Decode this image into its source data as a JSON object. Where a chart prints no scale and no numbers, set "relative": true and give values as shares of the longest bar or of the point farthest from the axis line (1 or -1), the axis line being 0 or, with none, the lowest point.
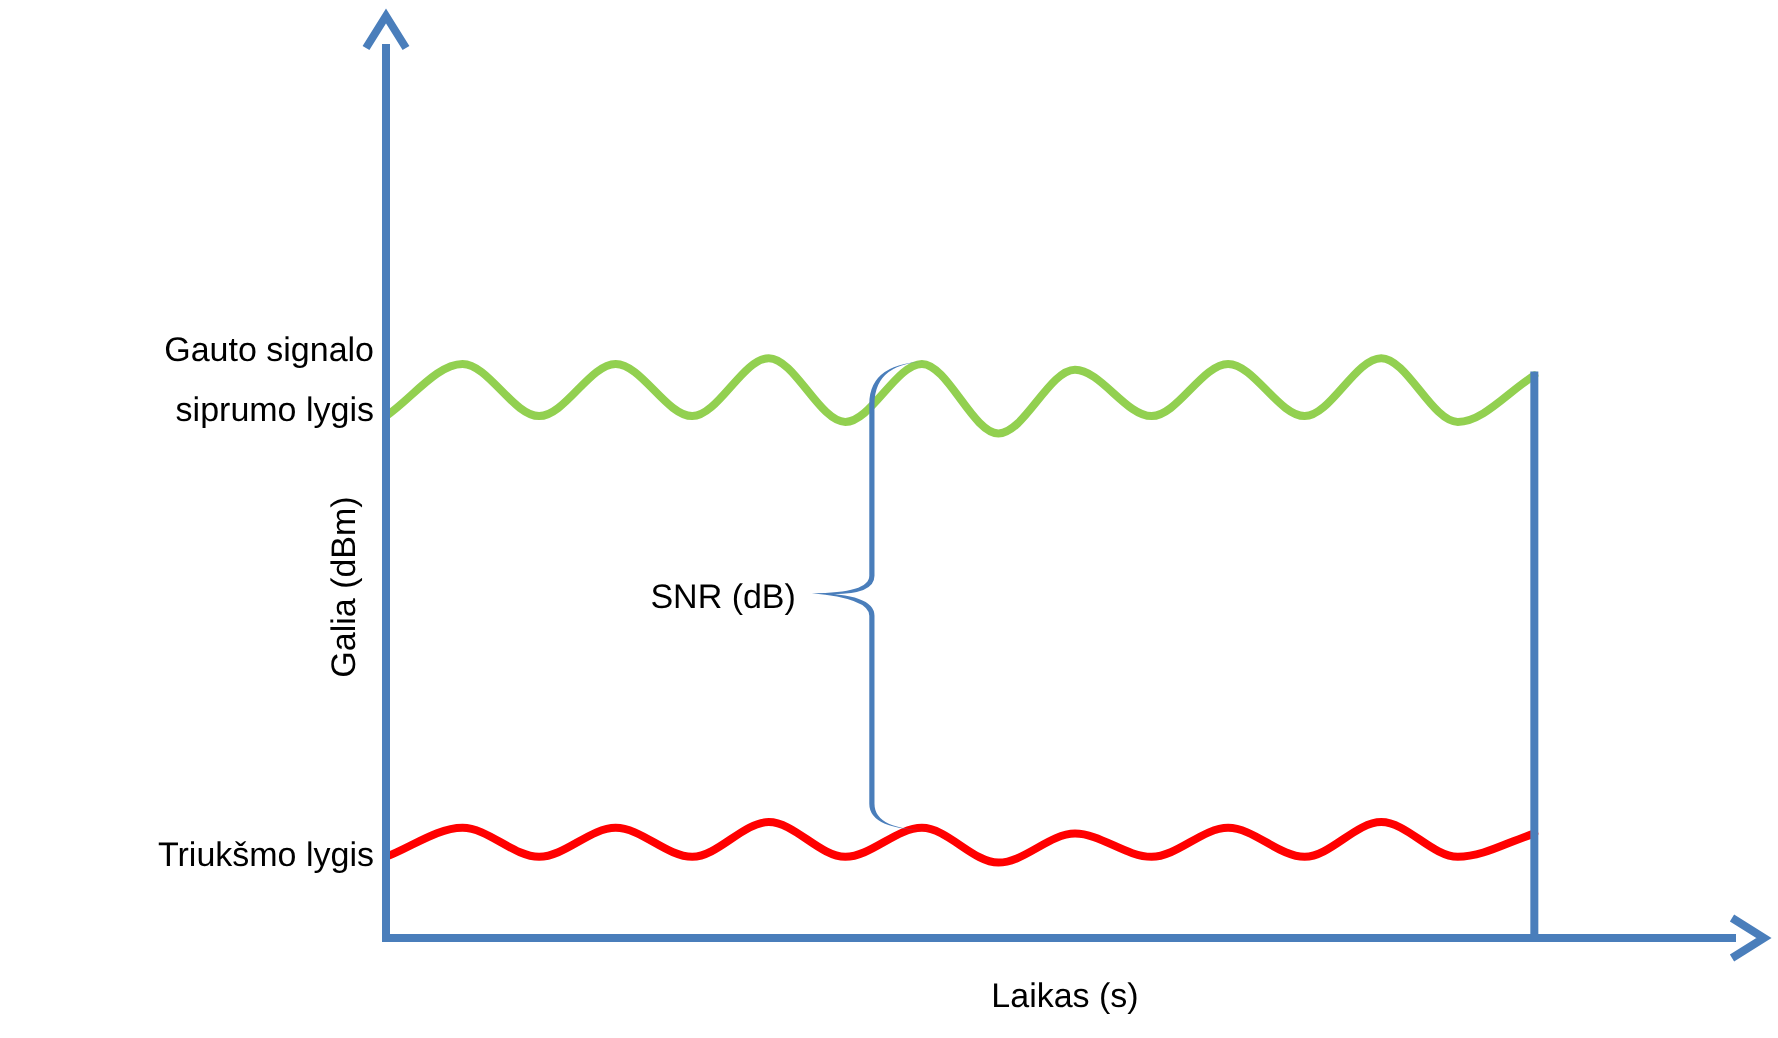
{
  "chart_data": {
    "type": "line",
    "relative": true,
    "xlabel": "Laikas (s)",
    "ylabel": "Galia (dBm)",
    "annotations": [
      "SNR (dB)"
    ],
    "legend": false,
    "marker": "none",
    "line_style": "solid",
    "categories": [
      null,
      null,
      null,
      null,
      null,
      null,
      null,
      null,
      null,
      null,
      null,
      null,
      null,
      null,
      null,
      null,
      null,
      null,
      null
    ],
    "series": [
      {
        "name": "Gauto signalo siprumo lygis",
        "color": "#92d050",
        "values": [
          0.9,
          0.99,
          0.9,
          0.99,
          0.9,
          1,
          0.89,
          0.99,
          0.87,
          0.98,
          0.9,
          0.99,
          0.9,
          1,
          0.89,
          0.97,
          null,
          null,
          null
        ]
      },
      {
        "name": "Triukšmo lygis",
        "color": "#ff0000",
        "values": [
          0.14,
          0.19,
          0.14,
          0.19,
          0.14,
          0.2,
          0.14,
          0.19,
          0.13,
          0.18,
          0.14,
          0.19,
          0.14,
          0.2,
          0.14,
          0.18,
          null,
          null,
          null
        ]
      }
    ]
  }
}
